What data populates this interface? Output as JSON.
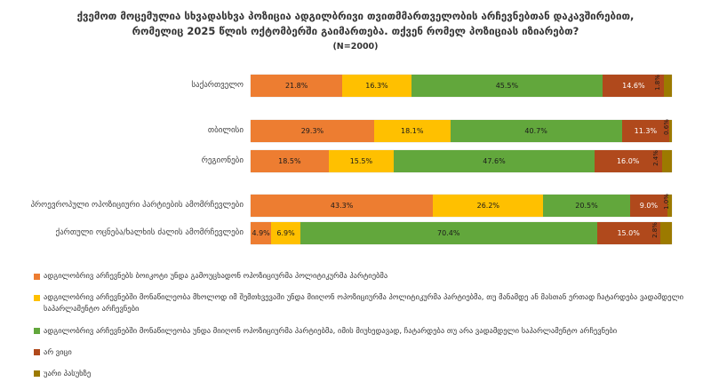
{
  "title": {
    "question": "ქვემოთ მოცემულია სხვადასხვა პოზიცია ადგილბრივი თვითმმართველობის არჩევნებთან დაკავშირებით, რომელიც 2025 წლის ოქტომბერში გაიმართება. თქვენ რომელ პოზიციას იზიარებთ?",
    "n_label": "(N=2000)"
  },
  "chart_data": {
    "type": "bar",
    "orientation": "horizontal",
    "stacked": true,
    "unit": "%",
    "xlim": [
      0,
      100
    ],
    "grid": false,
    "legend_position": "bottom-left",
    "categories": [
      "საქართველო",
      "თბილისი",
      "რეგიონები",
      "პროევროპული ოპოზიციური პარტიების ამომრჩევლები",
      "ქართული ოცნება/ხალხის ძალის ამომრჩევლები"
    ],
    "series": [
      {
        "name": "ადგილობრივ არჩევნებს ბოიკოტი უნდა გამოუცხადონ ოპოზიციურმა პოლიტიკურმა პარტიებმა",
        "color": "#ED7D31",
        "label_color": "#1a1a1a",
        "values": [
          21.8,
          29.3,
          18.5,
          43.3,
          4.9
        ]
      },
      {
        "name": "ადგილობრივ არჩევნებში მონაწილეობა მხოლოდ იმ შემთხვევაში უნდა მიიღონ ოპოზიციურმა პოლიტიკურმა პარტიებმა, თუ მანამდე ან მასთან ერთად ჩატარდება ვადამდელი საპარლამენტო არჩევნები",
        "color": "#FFC000",
        "label_color": "#1a1a1a",
        "values": [
          16.3,
          18.1,
          15.5,
          26.2,
          6.9
        ]
      },
      {
        "name": "ადგილობრივ არჩევნებში მონაწილეობა უნდა მიიღონ ოპოზიციურმა პარტიებმა, იმის მიუხედავად, ჩატარდება თუ არა ვადამდელი საპარლამენტო არჩევნები",
        "color": "#62A73C",
        "label_color": "#1a1a1a",
        "values": [
          45.5,
          40.7,
          47.6,
          20.5,
          70.4
        ]
      },
      {
        "name": "არ ვიცი",
        "color": "#B0491C",
        "label_color": "#ffffff",
        "values": [
          14.6,
          11.3,
          16.0,
          9.0,
          15.0
        ]
      },
      {
        "name": "უარი პასუხზე",
        "color": "#9C7A00",
        "label_color": "#1a1a1a",
        "values": [
          1.8,
          0.6,
          2.4,
          1.0,
          2.8
        ]
      }
    ]
  }
}
